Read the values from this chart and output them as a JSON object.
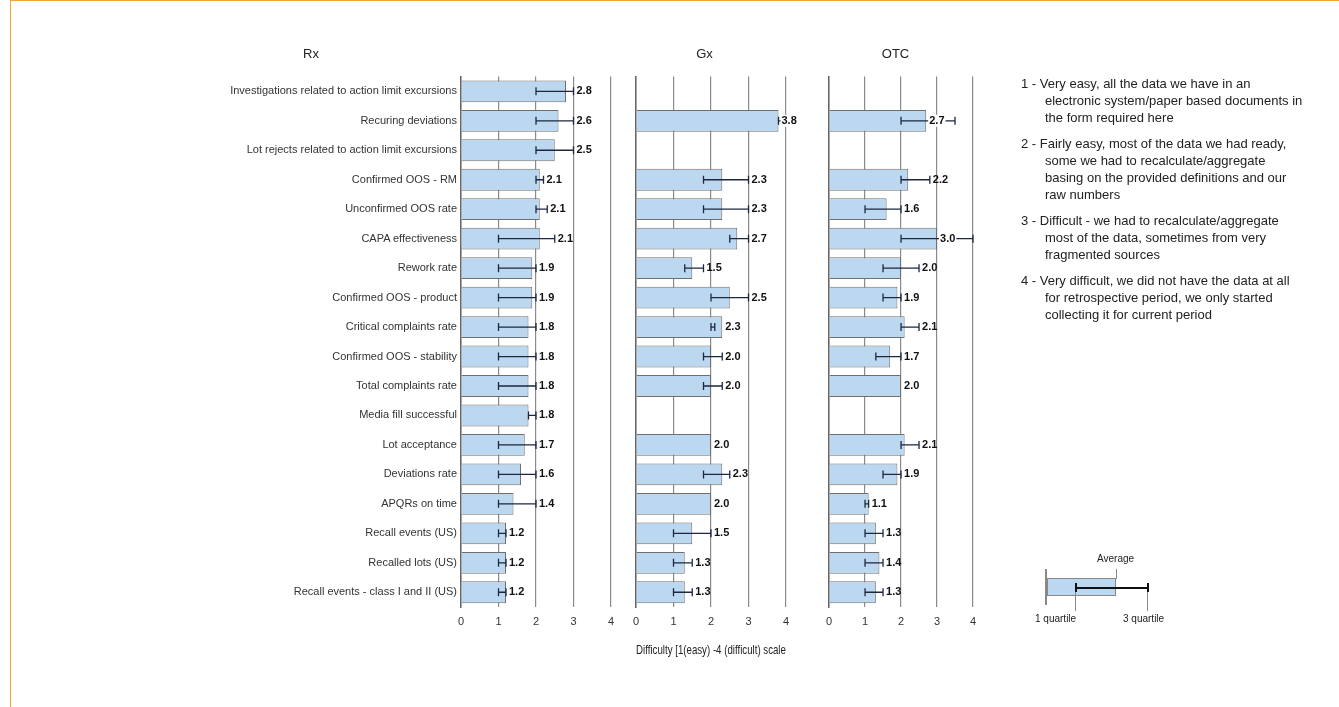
{
  "chart_data": [
    {
      "type": "bar",
      "title": "Rx",
      "orientation": "horizontal",
      "xlim": [
        0,
        4
      ],
      "xticks": [
        0,
        1,
        2,
        3,
        4
      ],
      "grid": "x",
      "categories": [
        "Investigations related to action limit excursions",
        "Recuring deviations",
        "Lot rejects related to action limit excursions",
        "Confirmed OOS - RM",
        "Unconfirmed OOS rate",
        "CAPA effectiveness",
        "Rework rate",
        "Confirmed OOS - product",
        "Critical complaints rate",
        "Confirmed OOS - stability",
        "Total complaints rate",
        "Media fill successful",
        "Lot acceptance",
        "Deviations rate",
        "APQRs on time",
        "Recall events (US)",
        "Recalled lots (US)",
        "Recall events - class I and II (US)"
      ],
      "color": "#bcd8f0",
      "values": [
        2.8,
        2.6,
        2.5,
        2.1,
        2.1,
        2.1,
        1.9,
        1.9,
        1.8,
        1.8,
        1.8,
        1.8,
        1.7,
        1.6,
        1.4,
        1.2,
        1.2,
        1.2
      ],
      "errors": [
        [
          2,
          3
        ],
        [
          2,
          3
        ],
        [
          2,
          3
        ],
        [
          2,
          2.2
        ],
        [
          2,
          2.3
        ],
        [
          1,
          2.5
        ],
        [
          1,
          2
        ],
        [
          1,
          2
        ],
        [
          1,
          2
        ],
        [
          1,
          2
        ],
        [
          1,
          2
        ],
        [
          1.8,
          2
        ],
        [
          1,
          2
        ],
        [
          1,
          2
        ],
        [
          1,
          2
        ],
        [
          1,
          1.2
        ],
        [
          1,
          1.2
        ],
        [
          1,
          1.2
        ]
      ],
      "value_labels": [
        "2.8",
        "2.6",
        "2.5",
        "2.1",
        "2.1",
        "2.1",
        "1.9",
        "1.9",
        "1.8",
        "1.8",
        "1.8",
        "1.8",
        "1.7",
        "1.6",
        "1.4",
        "1.2",
        "1.2",
        "1.2"
      ]
    },
    {
      "type": "bar",
      "title": "Gx",
      "xlabel": "Difficulty [1(easy) -4 (difficult) scale",
      "orientation": "horizontal",
      "xlim": [
        0,
        4
      ],
      "xticks": [
        0,
        1,
        2,
        3,
        4
      ],
      "grid": "x",
      "tick_labels": "x",
      "categories": [
        null,
        null,
        null,
        null,
        null,
        null,
        null,
        null,
        null,
        null,
        null,
        null,
        null,
        null,
        null,
        null,
        null,
        null
      ],
      "color": "#bcd8f0",
      "values": [
        null,
        3.8,
        null,
        2.3,
        2.3,
        2.7,
        1.5,
        2.5,
        2.3,
        2.0,
        2.0,
        null,
        2.0,
        2.3,
        2.0,
        1.5,
        1.3,
        1.3
      ],
      "errors": [
        null,
        [
          3.8,
          4
        ],
        null,
        [
          1.8,
          3
        ],
        [
          1.8,
          3
        ],
        [
          2.5,
          3
        ],
        [
          1.3,
          1.8
        ],
        [
          2,
          3
        ],
        [
          2,
          2.1
        ],
        [
          1.8,
          2.3
        ],
        [
          1.8,
          2.3
        ],
        null,
        null,
        [
          1.8,
          2.5
        ],
        null,
        [
          1,
          2
        ],
        [
          1,
          1.5
        ],
        [
          1,
          1.5
        ]
      ],
      "value_labels": [
        null,
        "3.8",
        null,
        "2.3",
        "2.3",
        "2.7",
        "1.5",
        "2.5",
        "2.3",
        "2.0",
        "2.0",
        null,
        "2.0",
        "2.3",
        "2.0",
        "1.5",
        "1.3",
        "1.3"
      ]
    },
    {
      "type": "bar",
      "title": "OTC",
      "orientation": "horizontal",
      "xlim": [
        0,
        4
      ],
      "xticks": [
        0,
        1,
        2,
        3,
        4
      ],
      "grid": "x",
      "tick_labels": "x",
      "categories": [
        null,
        null,
        null,
        null,
        null,
        null,
        null,
        null,
        null,
        null,
        null,
        null,
        null,
        null,
        null,
        null,
        null,
        null
      ],
      "color": "#bcd8f0",
      "values": [
        null,
        2.7,
        null,
        2.2,
        1.6,
        3.0,
        2.0,
        1.9,
        2.1,
        1.7,
        2.0,
        null,
        2.1,
        1.9,
        1.1,
        1.3,
        1.4,
        1.3
      ],
      "errors": [
        null,
        [
          2,
          3.5
        ],
        null,
        [
          2,
          2.8
        ],
        [
          1,
          2
        ],
        [
          2,
          4
        ],
        [
          1.5,
          2.5
        ],
        [
          1.5,
          2
        ],
        [
          2,
          2.5
        ],
        [
          1.3,
          2
        ],
        null,
        null,
        [
          2,
          2.5
        ],
        [
          1.5,
          2
        ],
        [
          1,
          1.1
        ],
        [
          1,
          1.5
        ],
        [
          1,
          1.5
        ],
        [
          1,
          1.5
        ]
      ],
      "value_labels": [
        null,
        "2.7",
        null,
        "2.2",
        "1.6",
        "3.0",
        "2.0",
        "1.9",
        "2.1",
        "1.7",
        "2.0",
        null,
        "2.1",
        "1.9",
        "1.1",
        "1.3",
        "1.4",
        "1.3"
      ]
    },
    {
      "type": "other",
      "annotations": [
        "1 - Very easy, all the data we have in an electronic system/paper based documents in the form required here",
        "2 - Fairly easy, most of the data we had ready, some we had to recalculate/aggregate basing on the provided definitions and our raw numbers",
        "3 - Difficult - we had to recalculate/aggregate most of the data, sometimes from very fragmented sources",
        "4 - Very difficult, we did not have the data at all for retrospective period, we only started collecting it for current period",
        "Average",
        "1 quartile",
        "3 quartile"
      ]
    }
  ]
}
